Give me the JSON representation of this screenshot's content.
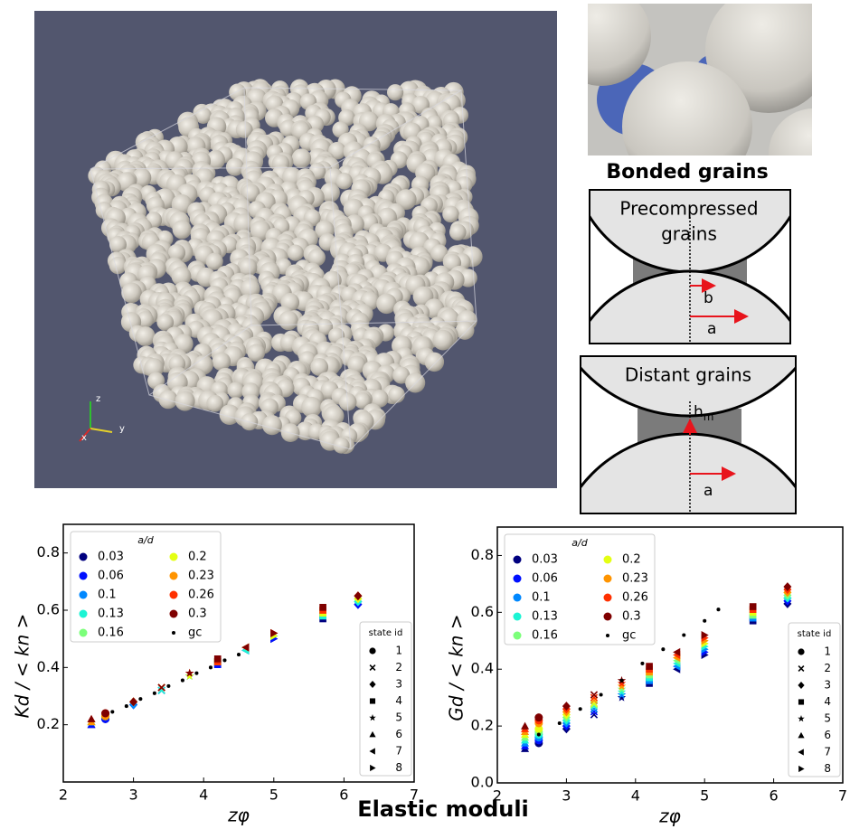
{
  "figure_title": "Elastic moduli",
  "render": {
    "axes": [
      "z",
      "y",
      "x"
    ]
  },
  "closeup": {
    "title": "Bonded grains"
  },
  "diagrams": [
    {
      "title_lines": [
        "Precompressed",
        "grains"
      ],
      "b": "b",
      "a": "a"
    },
    {
      "title": "Distant grains",
      "h": "h",
      "h_sub": "m",
      "a": "a"
    }
  ],
  "chart_data": [
    {
      "type": "scatter",
      "xlabel": "zφ",
      "ylabel": "Kd / < kn >",
      "xlim": [
        2,
        7
      ],
      "ylim": [
        0,
        0.9
      ],
      "xticks": [
        2,
        3,
        4,
        5,
        6,
        7
      ],
      "yticks": [
        0.2,
        0.4,
        0.6,
        0.8
      ],
      "legend": {
        "title": "a/d",
        "corner": "upper left"
      },
      "state_legend": {
        "title": "state id",
        "corner": "lower right",
        "labels": [
          "1",
          "2",
          "3",
          "4",
          "5",
          "6",
          "7",
          "8"
        ],
        "markers": [
          "circle",
          "x",
          "diamond",
          "square",
          "star",
          "triangle-up",
          "triangle-left",
          "triangle-right"
        ]
      },
      "x": [
        2.4,
        2.6,
        3.0,
        3.4,
        3.8,
        4.2,
        4.6,
        5.0,
        5.7,
        6.2
      ],
      "markers": [
        "triangle-up",
        "circle",
        "diamond",
        "x",
        "star",
        "square",
        "triangle-left",
        "triangle-right",
        "square",
        "diamond"
      ],
      "series": [
        {
          "name": "0.03",
          "color": "#00007f",
          "values": [
            0.2,
            0.22,
            0.27,
            0.32,
            0.37,
            0.41,
            0.46,
            0.5,
            0.57,
            0.62
          ]
        },
        {
          "name": "0.06",
          "color": "#0010ff",
          "values": [
            0.2,
            0.22,
            0.27,
            0.32,
            0.37,
            0.41,
            0.46,
            0.5,
            0.58,
            0.62
          ]
        },
        {
          "name": "0.1",
          "color": "#0088ff",
          "values": [
            0.21,
            0.23,
            0.27,
            0.32,
            0.37,
            0.42,
            0.46,
            0.51,
            0.58,
            0.63
          ]
        },
        {
          "name": "0.13",
          "color": "#1cf4d4",
          "values": [
            0.21,
            0.23,
            0.28,
            0.32,
            0.37,
            0.42,
            0.46,
            0.51,
            0.58,
            0.63
          ]
        },
        {
          "name": "0.16",
          "color": "#7cff7a",
          "values": [
            0.21,
            0.23,
            0.28,
            0.33,
            0.37,
            0.42,
            0.47,
            0.51,
            0.59,
            0.64
          ]
        },
        {
          "name": "0.2",
          "color": "#e4ff13",
          "values": [
            0.21,
            0.23,
            0.28,
            0.33,
            0.37,
            0.42,
            0.47,
            0.51,
            0.59,
            0.64
          ]
        },
        {
          "name": "0.23",
          "color": "#ff9400",
          "values": [
            0.21,
            0.23,
            0.28,
            0.33,
            0.38,
            0.42,
            0.47,
            0.52,
            0.6,
            0.65
          ]
        },
        {
          "name": "0.26",
          "color": "#ff3000",
          "values": [
            0.22,
            0.24,
            0.28,
            0.33,
            0.38,
            0.42,
            0.47,
            0.52,
            0.6,
            0.65
          ]
        },
        {
          "name": "0.3",
          "color": "#7f0000",
          "values": [
            0.22,
            0.24,
            0.28,
            0.33,
            0.38,
            0.43,
            0.47,
            0.52,
            0.61,
            0.65
          ]
        },
        {
          "name": "gc",
          "color": "#000000",
          "marker": "dot",
          "x": [
            2.7,
            2.9,
            3.1,
            3.3,
            3.5,
            3.7,
            3.9,
            4.1,
            4.3,
            4.5
          ],
          "values": [
            0.245,
            0.265,
            0.29,
            0.31,
            0.335,
            0.355,
            0.38,
            0.4,
            0.425,
            0.445
          ]
        }
      ]
    },
    {
      "type": "scatter",
      "xlabel": "zφ",
      "ylabel": "Gd / < kn >",
      "xlim": [
        2,
        7
      ],
      "ylim": [
        0,
        0.9
      ],
      "xticks": [
        2,
        3,
        4,
        5,
        6,
        7
      ],
      "yticks": [
        {
          "value": 0,
          "label": "0.0"
        },
        0.2,
        0.4,
        0.6,
        0.8
      ],
      "legend": {
        "title": "a/d",
        "corner": "upper left"
      },
      "state_legend": {
        "title": "state id",
        "corner": "lower right",
        "labels": [
          "1",
          "2",
          "3",
          "4",
          "5",
          "6",
          "7",
          "8"
        ],
        "markers": [
          "circle",
          "x",
          "diamond",
          "square",
          "star",
          "triangle-up",
          "triangle-left",
          "triangle-right"
        ]
      },
      "x": [
        2.4,
        2.6,
        3.0,
        3.4,
        3.8,
        4.2,
        4.6,
        5.0,
        5.7,
        6.2
      ],
      "markers": [
        "triangle-up",
        "circle",
        "diamond",
        "x",
        "star",
        "square",
        "triangle-left",
        "triangle-right",
        "square",
        "diamond"
      ],
      "series": [
        {
          "name": "0.03",
          "color": "#00007f",
          "values": [
            0.12,
            0.14,
            0.19,
            0.24,
            0.3,
            0.35,
            0.4,
            0.45,
            0.57,
            0.63
          ]
        },
        {
          "name": "0.06",
          "color": "#0010ff",
          "values": [
            0.13,
            0.15,
            0.2,
            0.25,
            0.31,
            0.36,
            0.41,
            0.46,
            0.58,
            0.64
          ]
        },
        {
          "name": "0.1",
          "color": "#0088ff",
          "values": [
            0.14,
            0.16,
            0.21,
            0.26,
            0.31,
            0.36,
            0.41,
            0.47,
            0.58,
            0.65
          ]
        },
        {
          "name": "0.13",
          "color": "#1cf4d4",
          "values": [
            0.15,
            0.17,
            0.22,
            0.27,
            0.32,
            0.37,
            0.42,
            0.48,
            0.59,
            0.65
          ]
        },
        {
          "name": "0.16",
          "color": "#7cff7a",
          "values": [
            0.16,
            0.18,
            0.23,
            0.275,
            0.33,
            0.38,
            0.43,
            0.49,
            0.59,
            0.66
          ]
        },
        {
          "name": "0.2",
          "color": "#e4ff13",
          "values": [
            0.17,
            0.19,
            0.24,
            0.28,
            0.34,
            0.39,
            0.44,
            0.49,
            0.6,
            0.67
          ]
        },
        {
          "name": "0.23",
          "color": "#ff9400",
          "values": [
            0.18,
            0.21,
            0.25,
            0.29,
            0.34,
            0.39,
            0.44,
            0.5,
            0.61,
            0.67
          ]
        },
        {
          "name": "0.26",
          "color": "#ff3000",
          "values": [
            0.19,
            0.22,
            0.26,
            0.3,
            0.35,
            0.4,
            0.45,
            0.51,
            0.61,
            0.68
          ]
        },
        {
          "name": "0.3",
          "color": "#7f0000",
          "values": [
            0.2,
            0.23,
            0.27,
            0.31,
            0.36,
            0.41,
            0.46,
            0.52,
            0.62,
            0.69
          ]
        },
        {
          "name": "gc",
          "color": "#000000",
          "marker": "dot",
          "x": [
            2.6,
            2.9,
            3.2,
            3.5,
            3.8,
            4.1,
            4.4,
            4.7,
            5.0,
            5.2
          ],
          "values": [
            0.17,
            0.21,
            0.26,
            0.31,
            0.36,
            0.42,
            0.47,
            0.52,
            0.57,
            0.61
          ]
        }
      ]
    }
  ]
}
